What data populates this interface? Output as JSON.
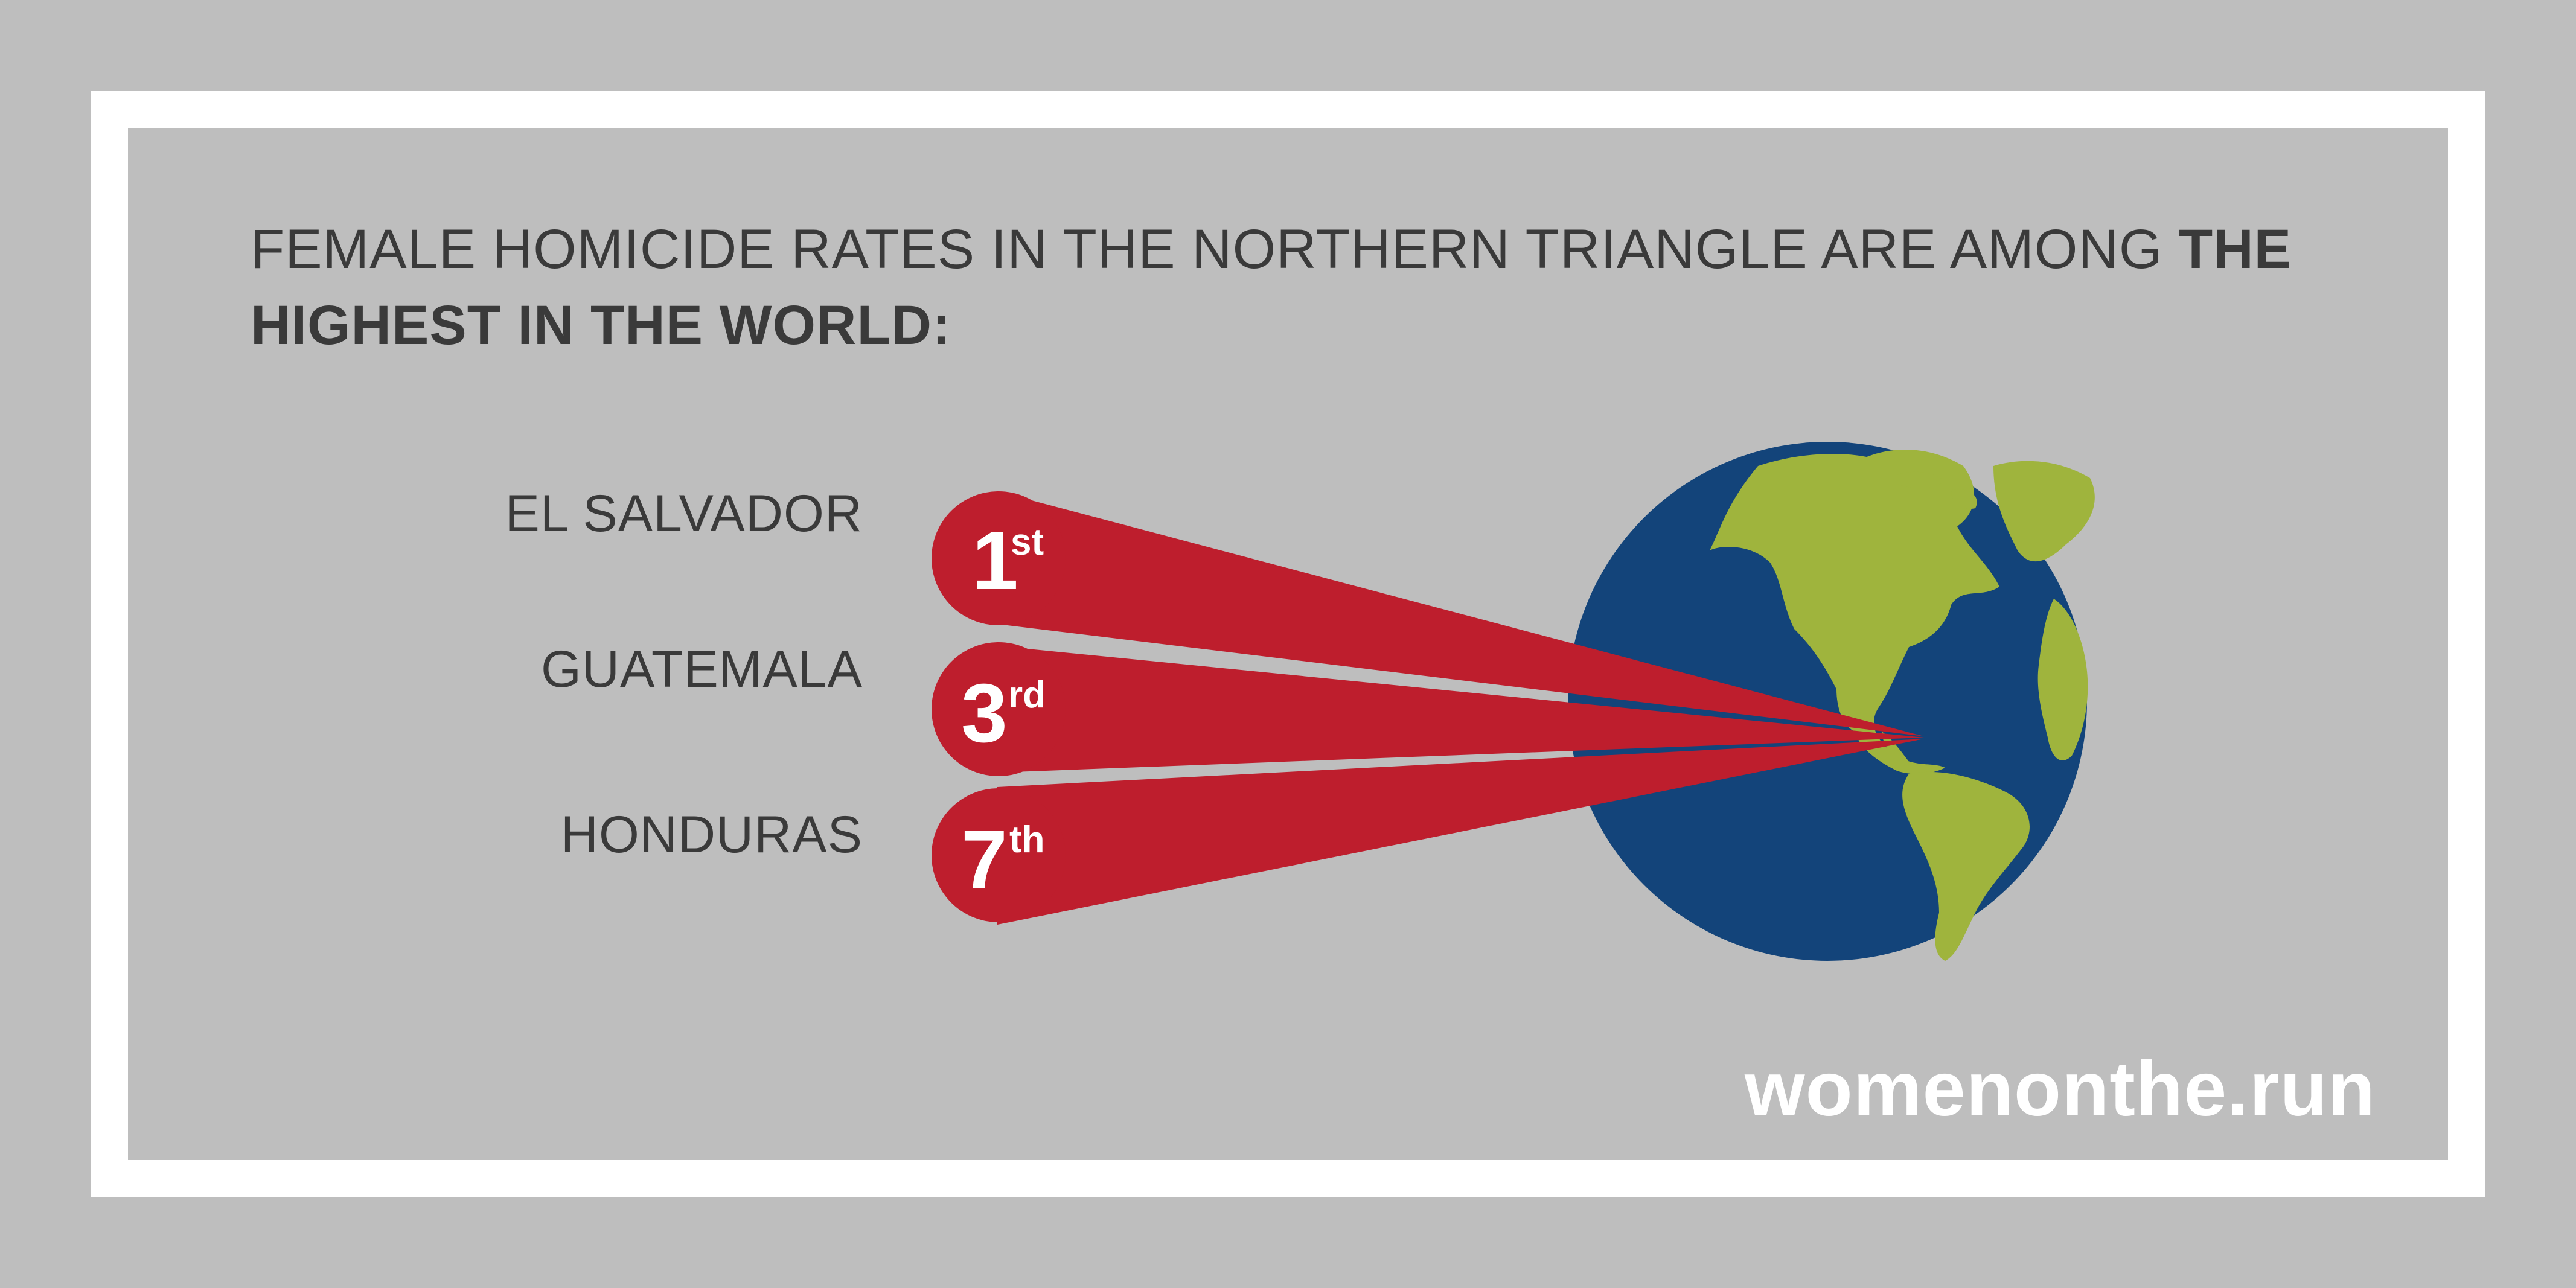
{
  "headline": {
    "regular": "FEMALE HOMICIDE RATES IN THE NORTHERN TRIANGLE ARE AMONG ",
    "bold": "THE HIGHEST IN THE WORLD:"
  },
  "rankings": [
    {
      "country": "EL SALVADOR",
      "rank": "1",
      "suffix": "st"
    },
    {
      "country": "GUATEMALA",
      "rank": "3",
      "suffix": "rd"
    },
    {
      "country": "HONDURAS",
      "rank": "7",
      "suffix": "th"
    }
  ],
  "website": "womenonthe.run",
  "colors": {
    "background": "#bebebe",
    "frame": "#ffffff",
    "text": "#3a3a3a",
    "accent_red": "#be1e2d",
    "ocean_blue": "#13447a",
    "land_green": "#9fb43d"
  },
  "icons": [
    "globe-icon"
  ]
}
